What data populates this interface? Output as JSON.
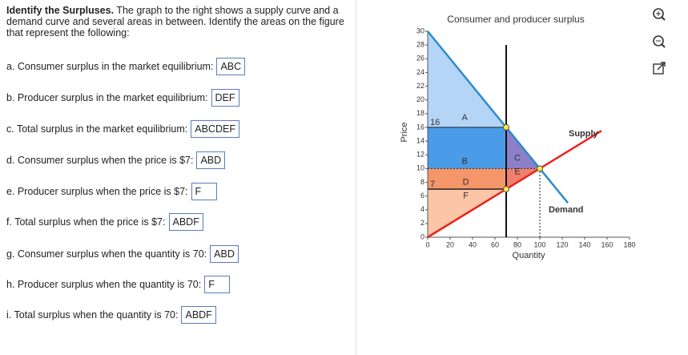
{
  "instructions": {
    "title": "Identify the Surpluses.",
    "text": "The graph to the right shows a supply curve and a demand curve and several areas in between. Identify the areas on the figure that represent the following:"
  },
  "questions": [
    {
      "label": "a. Consumer surplus in the market equilibrium:",
      "answer": "ABC"
    },
    {
      "label": "b. Producer surplus in the market equilibrium:",
      "answer": "DEF"
    },
    {
      "label": "c. Total surplus in the market equilibrium:",
      "answer": "ABCDEF"
    },
    {
      "label": "d. Consumer surplus when the price is $7:",
      "answer": "ABD"
    },
    {
      "label": "e. Producer surplus when the price is $7:",
      "answer": "F"
    },
    {
      "label": "f. Total surplus when the price is $7:",
      "answer": "ABDF"
    },
    {
      "label": "g. Consumer surplus when the quantity is 70:",
      "answer": "ABD"
    },
    {
      "label": "h. Producer surplus when the quantity is 70:",
      "answer": "F"
    },
    {
      "label": "i. Total surplus when the quantity is 70:",
      "answer": "ABDF"
    }
  ],
  "graph": {
    "title": "Consumer and producer surplus",
    "x_label": "Quantity",
    "y_label": "Price",
    "xlim": [
      0,
      180
    ],
    "ylim": [
      0,
      30
    ],
    "xticks": [
      0,
      20,
      40,
      60,
      80,
      100,
      120,
      140,
      160,
      180
    ],
    "yticks": [
      0,
      2,
      4,
      6,
      8,
      10,
      12,
      14,
      16,
      18,
      20,
      22,
      24,
      26,
      28,
      30
    ],
    "demand": {
      "label": "Demand",
      "points": [
        [
          0,
          30
        ],
        [
          125,
          5
        ]
      ]
    },
    "supply": {
      "label": "Supply",
      "points": [
        [
          0,
          0
        ],
        [
          155,
          15.5
        ]
      ]
    },
    "quantity_line": {
      "x": 70,
      "top": 28
    },
    "points": [
      {
        "x": 70,
        "y": 16
      },
      {
        "x": 70,
        "y": 7
      },
      {
        "x": 100,
        "y": 10
      }
    ],
    "price_labels": [
      16,
      7
    ],
    "regions": [
      "A",
      "B",
      "C",
      "D",
      "E",
      "F"
    ]
  }
}
